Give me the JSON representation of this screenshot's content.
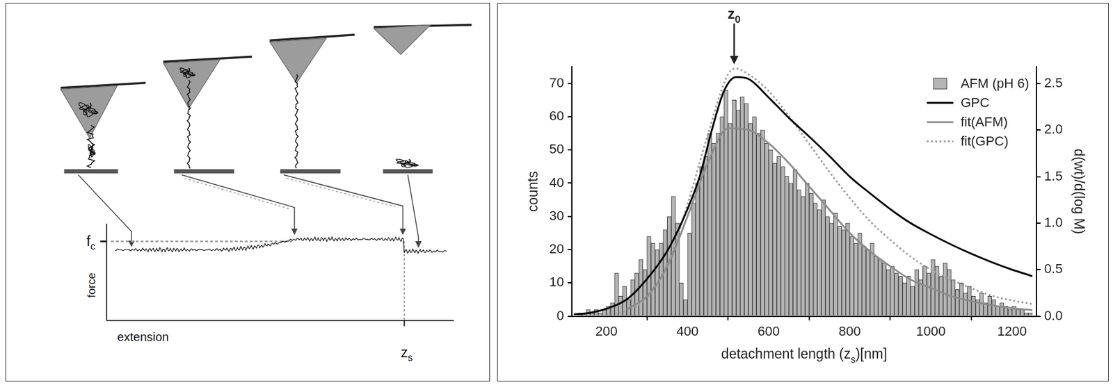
{
  "diagram": {
    "y_label": "force",
    "x_label": "extension",
    "level_label": [
      {
        "text": "f"
      },
      {
        "text": "c",
        "sub": true
      }
    ],
    "end_label": [
      {
        "text": "z"
      },
      {
        "text": "s",
        "sub": true
      }
    ]
  },
  "chart_data": {
    "type": "bar",
    "x_label": [
      {
        "text": "detachment length (z"
      },
      {
        "text": "s",
        "sub": true
      },
      {
        "text": ")[nm]"
      }
    ],
    "y_label": "counts",
    "y2_label": "d(wt)/d(log M)",
    "bins": [
      130,
      140,
      150,
      160,
      170,
      180,
      190,
      200,
      210,
      220,
      230,
      240,
      250,
      260,
      270,
      280,
      290,
      300,
      310,
      320,
      330,
      340,
      350,
      360,
      370,
      380,
      390,
      400,
      410,
      420,
      430,
      440,
      450,
      460,
      470,
      480,
      490,
      500,
      510,
      520,
      530,
      540,
      550,
      560,
      570,
      580,
      590,
      600,
      610,
      620,
      630,
      640,
      650,
      660,
      670,
      680,
      690,
      700,
      710,
      720,
      730,
      740,
      750,
      760,
      770,
      780,
      790,
      800,
      810,
      820,
      830,
      840,
      850,
      860,
      870,
      880,
      890,
      900,
      910,
      920,
      930,
      940,
      950,
      960,
      970,
      980,
      990,
      1000,
      1010,
      1020,
      1030,
      1040,
      1050,
      1060,
      1070,
      1080,
      1090,
      1100,
      1110,
      1120,
      1130,
      1140,
      1150,
      1160,
      1170,
      1180,
      1190,
      1200,
      1210,
      1220,
      1230,
      1240,
      1250
    ],
    "series": [
      {
        "name": "AFM (pH 6)",
        "type": "bar",
        "color": "#b4b4b4",
        "values": [
          1,
          1,
          2,
          1,
          2,
          1,
          2,
          3,
          4,
          13,
          6,
          9,
          5,
          11,
          13,
          17,
          14,
          24,
          22,
          20,
          22,
          26,
          30,
          36,
          28,
          10,
          5,
          25,
          34,
          40,
          45,
          48,
          55,
          52,
          55,
          60,
          68,
          58,
          65,
          62,
          66,
          64,
          58,
          60,
          55,
          56,
          52,
          50,
          46,
          48,
          45,
          42,
          40,
          44,
          38,
          36,
          40,
          37,
          34,
          32,
          35,
          30,
          28,
          31,
          27,
          26,
          28,
          24,
          22,
          25,
          21,
          20,
          22,
          18,
          17,
          16,
          14,
          15,
          13,
          12,
          10,
          12,
          9,
          14,
          11,
          15,
          13,
          17,
          15,
          12,
          16,
          14,
          11,
          8,
          10,
          7,
          9,
          6,
          5,
          7,
          4,
          6,
          5,
          3,
          4,
          3,
          2,
          3,
          2,
          2,
          1,
          1
        ]
      },
      {
        "name": "GPC",
        "type": "line",
        "color": "#000000",
        "line_style": "solid",
        "axis": "y2",
        "x": [
          120,
          150,
          200,
          250,
          300,
          350,
          400,
          430,
          460,
          490,
          520,
          550,
          600,
          650,
          700,
          750,
          800,
          850,
          900,
          950,
          1000,
          1050,
          1100,
          1150,
          1200,
          1250
        ],
        "values": [
          0.02,
          0.03,
          0.08,
          0.18,
          0.4,
          0.7,
          1.15,
          1.5,
          2.0,
          2.42,
          2.57,
          2.55,
          2.35,
          2.13,
          1.93,
          1.72,
          1.5,
          1.32,
          1.15,
          1.0,
          0.88,
          0.77,
          0.67,
          0.58,
          0.5,
          0.43
        ]
      },
      {
        "name": "fit(AFM)",
        "type": "line",
        "color": "#8c8c8c",
        "line_style": "solid",
        "x": [
          250,
          300,
          350,
          400,
          450,
          500,
          550,
          600,
          650,
          700,
          750,
          800,
          850,
          900,
          950,
          1000,
          1050,
          1100,
          1150,
          1200,
          1250
        ],
        "values": [
          2,
          6,
          15,
          30,
          46,
          56.5,
          56,
          52,
          46,
          39,
          32,
          25,
          19.5,
          15,
          11,
          8.5,
          6,
          4.5,
          3.3,
          2.4,
          1.8
        ]
      },
      {
        "name": "fit(GPC)",
        "type": "line",
        "color": "#9a9a9a",
        "line_style": "dotted",
        "axis": "y2",
        "x": [
          200,
          250,
          300,
          350,
          400,
          450,
          500,
          520,
          550,
          600,
          650,
          700,
          750,
          800,
          850,
          900,
          950,
          1000,
          1050,
          1100,
          1150,
          1200,
          1250
        ],
        "values": [
          0.02,
          0.06,
          0.2,
          0.55,
          1.2,
          1.95,
          2.6,
          2.66,
          2.6,
          2.42,
          2.15,
          1.85,
          1.55,
          1.27,
          1.02,
          0.82,
          0.64,
          0.5,
          0.39,
          0.3,
          0.22,
          0.17,
          0.13
        ]
      }
    ],
    "xlim": [
      115,
      1260
    ],
    "xticks": [
      200,
      400,
      600,
      800,
      1000,
      1200
    ],
    "ylim": [
      0,
      75
    ],
    "yticks": [
      0,
      10,
      20,
      30,
      40,
      50,
      60,
      70
    ],
    "y2lim": [
      0,
      2.68
    ],
    "y2ticks": [
      {
        "value": 0,
        "label": "0.0"
      },
      0.5,
      {
        "value": 1,
        "label": "1.0"
      },
      1.5,
      {
        "value": 2,
        "label": "2.0"
      },
      2.5
    ],
    "annotations": [
      {
        "x": 515,
        "text": [
          {
            "text": "z"
          },
          {
            "text": "0",
            "sub": true
          }
        ]
      }
    ],
    "legend": "top right",
    "grid": false
  }
}
